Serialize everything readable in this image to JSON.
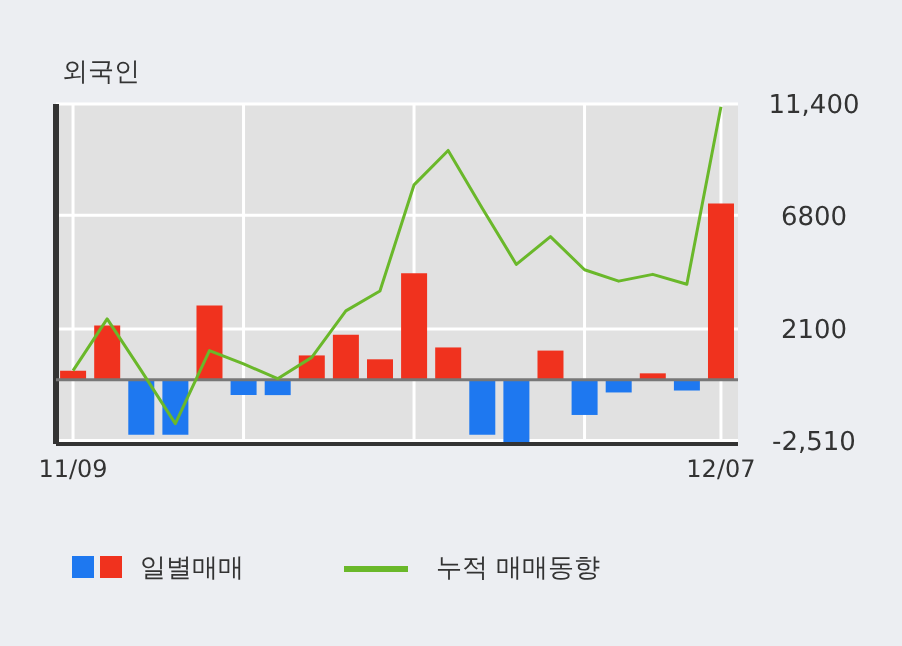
{
  "chart_data": {
    "type": "bar",
    "title": "외국인",
    "categories": [
      "11/09",
      null,
      null,
      null,
      null,
      null,
      null,
      null,
      null,
      null,
      null,
      null,
      null,
      null,
      null,
      null,
      null,
      null,
      null,
      "12/07"
    ],
    "series": [
      {
        "name": "일별매매",
        "colors": [
          "#f0321e",
          "#f0321e",
          "#1e78f0",
          "#1e78f0",
          "#f0321e",
          "#1e78f0",
          "#1e78f0",
          "#f0321e",
          "#f0321e",
          "#f0321e",
          "#f0321e",
          "#f0321e",
          "#1e78f0",
          "#1e78f0",
          "#f0321e",
          "#1e78f0",
          "#1e78f0",
          "#f0321e",
          "#1e78f0",
          "#f0321e"
        ],
        "values": [
          380,
          2250,
          -2270,
          -2270,
          3070,
          -630,
          -630,
          1010,
          1860,
          850,
          4410,
          1340,
          -2270,
          -2600,
          1210,
          -1450,
          -520,
          270,
          -440,
          7290
        ]
      },
      {
        "type": "line",
        "name": "누적 매매동향",
        "color": "#6ab82a",
        "values": [
          380,
          2520,
          380,
          -1810,
          1210,
          660,
          50,
          930,
          2850,
          3670,
          8060,
          9480,
          7090,
          4770,
          5920,
          4550,
          4080,
          4360,
          3950,
          11290
        ]
      }
    ],
    "ylim": [
      -2650,
      11400
    ],
    "yticks": [
      {
        "value": -2510,
        "label": "-2,510"
      },
      2100,
      6800,
      {
        "value": 11400,
        "label": "11,400"
      }
    ],
    "ref_lines": [
      {
        "axis": "y",
        "value": 0,
        "color": "#777777"
      }
    ],
    "grid": true,
    "legend": "bottom",
    "marker": "none"
  }
}
